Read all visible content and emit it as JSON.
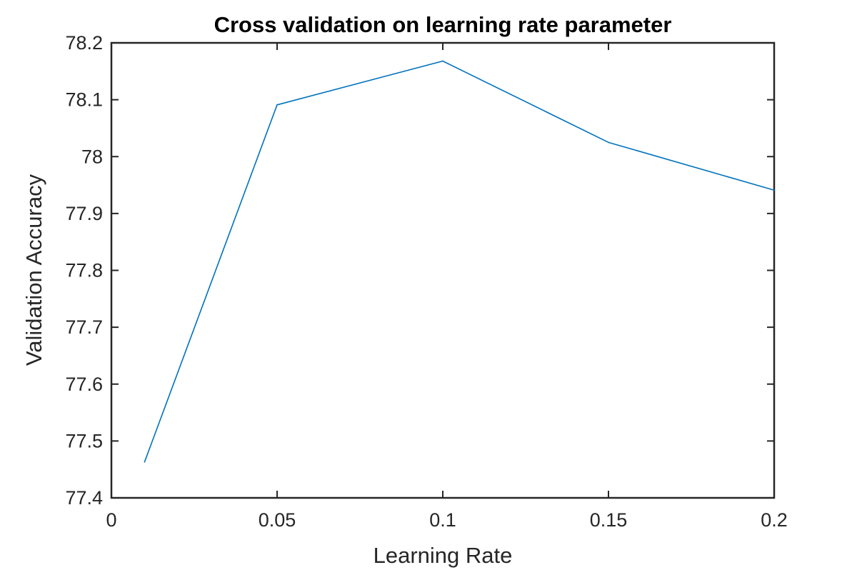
{
  "chart_data": {
    "type": "line",
    "title": "Cross validation on learning rate parameter",
    "xlabel": "Learning Rate",
    "ylabel": "Validation Accuracy",
    "xlim": [
      0,
      0.2
    ],
    "ylim": [
      77.4,
      78.2
    ],
    "xticks": [
      0,
      0.05,
      0.1,
      0.15,
      0.2
    ],
    "xtick_labels": [
      "0",
      "0.05",
      "0.1",
      "0.15",
      "0.2"
    ],
    "yticks": [
      77.4,
      77.5,
      77.6,
      77.7,
      77.8,
      77.9,
      78,
      78.1,
      78.2
    ],
    "ytick_labels": [
      "77.4",
      "77.5",
      "77.6",
      "77.7",
      "77.8",
      "77.9",
      "78",
      "78.1",
      "78.2"
    ],
    "grid": false,
    "series": [
      {
        "color": "#0072BD",
        "x": [
          0.01,
          0.05,
          0.1,
          0.15,
          0.2
        ],
        "y": [
          77.463,
          78.091,
          78.168,
          78.025,
          77.941
        ]
      }
    ]
  }
}
